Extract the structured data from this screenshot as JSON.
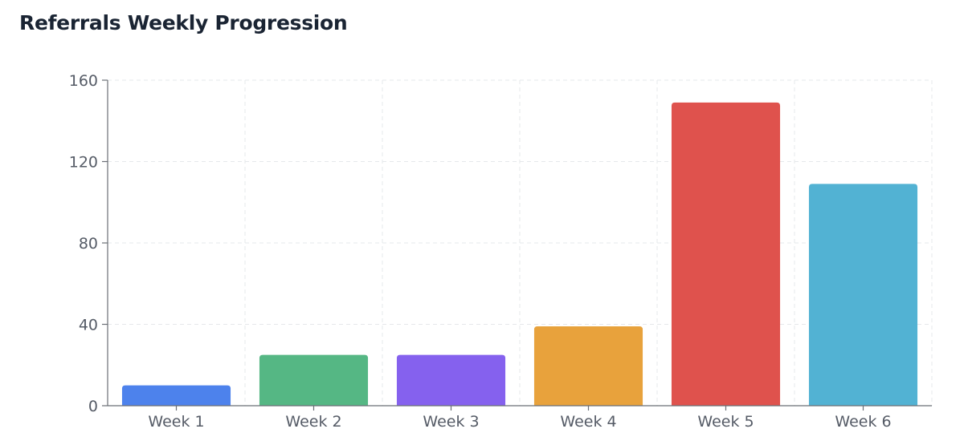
{
  "chart_data": {
    "type": "bar",
    "title": "Referrals Weekly Progression",
    "xlabel": "",
    "ylabel": "",
    "categories": [
      "Week 1",
      "Week 2",
      "Week 3",
      "Week 4",
      "Week 5",
      "Week 6"
    ],
    "values": [
      10,
      25,
      25,
      39,
      149,
      109
    ],
    "colors": [
      "#4d82ec",
      "#55b784",
      "#8561ee",
      "#e8a23c",
      "#df524d",
      "#52b2d3"
    ],
    "ylim": [
      0,
      160
    ],
    "yticks": [
      0,
      40,
      80,
      120,
      160
    ],
    "grid": true,
    "legend": "none"
  }
}
